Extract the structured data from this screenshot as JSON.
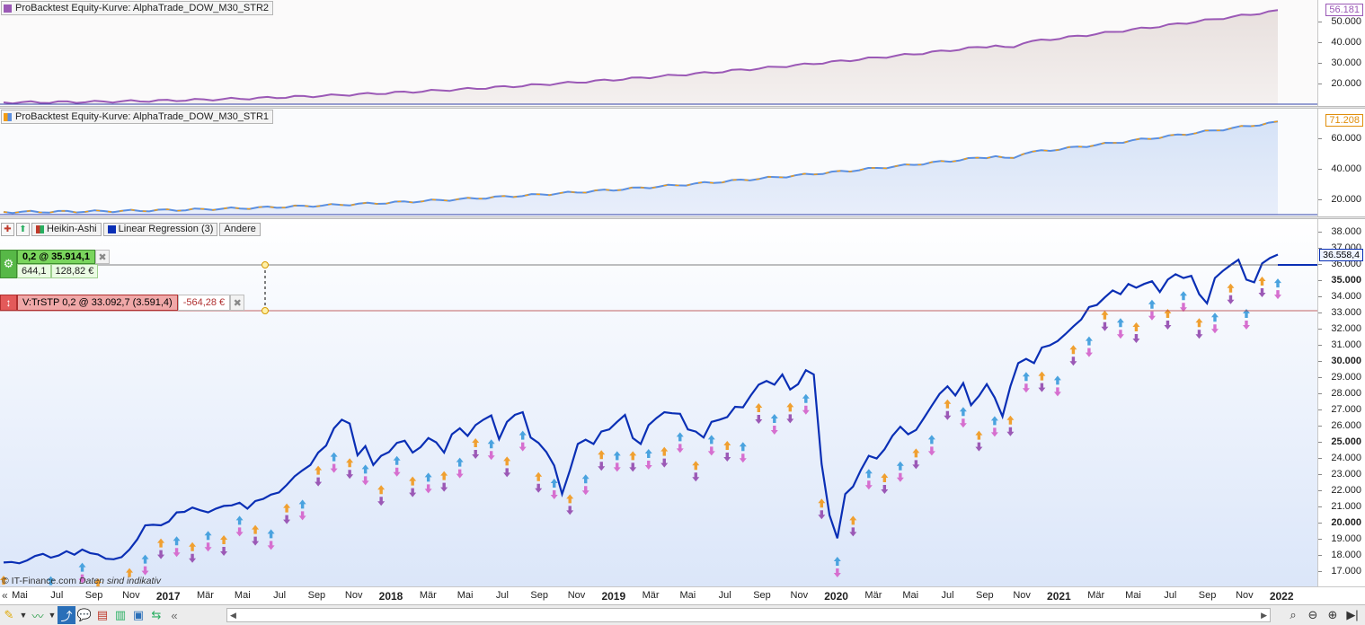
{
  "panels": {
    "equity2": {
      "legend": "ProBacktest Equity-Kurve: AlphaTrade_DOW_M30_STR2",
      "color": "#9b59b6",
      "last_value": "56.181",
      "ticks": [
        "50.000",
        "40.000",
        "30.000",
        "20.000"
      ],
      "icon": "equity-curve-icon"
    },
    "equity1": {
      "legend": "ProBacktest Equity-Kurve: AlphaTrade_DOW_M30_STR1",
      "color": "#f39c12",
      "last_value": "71.208",
      "ticks": [
        "60.000",
        "40.000",
        "20.000"
      ],
      "icon": "equity-curve-icon"
    },
    "price": {
      "toolbar": {
        "heikin": "Heikin-Ashi",
        "linreg": "Linear Regression (3)",
        "other": "Andere"
      },
      "current_price": "36.558,4",
      "ticks": [
        "38.000",
        "37.000",
        "36.000",
        "35.000",
        "34.000",
        "33.000",
        "32.000",
        "31.000",
        "30.000",
        "29.000",
        "28.000",
        "27.000",
        "26.000",
        "25.000",
        "24.000",
        "23.000",
        "22.000",
        "21.000",
        "20.000",
        "19.000",
        "18.000",
        "17.000"
      ],
      "bold_ticks": [
        "35.000",
        "30.000",
        "25.000",
        "20.000"
      ],
      "position": {
        "label": "0,2 @ 35.914,1",
        "points": "644,1",
        "pnl": "128,82 €"
      },
      "stop": {
        "label": "V:TrSTP  0,2 @ 33.092,7 (3.591,4)",
        "pnl": "-564,28 €"
      },
      "line_color": "#0a2fb5",
      "copyright": "© IT-Finance.com",
      "disclaimer": "Daten sind indikativ"
    }
  },
  "xaxis": [
    {
      "t": "Mai",
      "b": false
    },
    {
      "t": "Jul",
      "b": false
    },
    {
      "t": "Sep",
      "b": false
    },
    {
      "t": "Nov",
      "b": false
    },
    {
      "t": "2017",
      "b": true
    },
    {
      "t": "Mär",
      "b": false
    },
    {
      "t": "Mai",
      "b": false
    },
    {
      "t": "Jul",
      "b": false
    },
    {
      "t": "Sep",
      "b": false
    },
    {
      "t": "Nov",
      "b": false
    },
    {
      "t": "2018",
      "b": true
    },
    {
      "t": "Mär",
      "b": false
    },
    {
      "t": "Mai",
      "b": false
    },
    {
      "t": "Jul",
      "b": false
    },
    {
      "t": "Sep",
      "b": false
    },
    {
      "t": "Nov",
      "b": false
    },
    {
      "t": "2019",
      "b": true
    },
    {
      "t": "Mär",
      "b": false
    },
    {
      "t": "Mai",
      "b": false
    },
    {
      "t": "Jul",
      "b": false
    },
    {
      "t": "Sep",
      "b": false
    },
    {
      "t": "Nov",
      "b": false
    },
    {
      "t": "2020",
      "b": true
    },
    {
      "t": "Mär",
      "b": false
    },
    {
      "t": "Mai",
      "b": false
    },
    {
      "t": "Jul",
      "b": false
    },
    {
      "t": "Sep",
      "b": false
    },
    {
      "t": "Nov",
      "b": false
    },
    {
      "t": "2021",
      "b": true
    },
    {
      "t": "Mär",
      "b": false
    },
    {
      "t": "Mai",
      "b": false
    },
    {
      "t": "Jul",
      "b": false
    },
    {
      "t": "Sep",
      "b": false
    },
    {
      "t": "Nov",
      "b": false
    },
    {
      "t": "2022",
      "b": true
    }
  ],
  "chart_data": {
    "type": "line",
    "title": "",
    "x_range": [
      "2016-05",
      "2022-01"
    ],
    "ylim": [
      16500,
      38500
    ],
    "series": [
      {
        "values": [
          17500,
          17600,
          17450,
          17700,
          17900,
          18100,
          17800,
          18000,
          18200,
          18050,
          18300,
          18150,
          18000,
          17800,
          17700,
          17900,
          18300,
          19000,
          19800,
          19900,
          19800,
          20100,
          20600,
          20700,
          20900,
          20800,
          20600,
          20900,
          21000,
          21100,
          21200,
          20900,
          21300,
          21500,
          21700,
          21900,
          22300,
          22900,
          23200,
          23600,
          24300,
          24800,
          25800,
          26400,
          26100,
          24200,
          24700,
          23600,
          24100,
          24400,
          24900,
          25100,
          24300,
          24700,
          25200,
          25000,
          24300,
          25500,
          25800,
          25400,
          26000,
          26400,
          26600,
          25200,
          26200,
          26700,
          26800,
          25300,
          24900,
          24400,
          23500,
          21800,
          23200,
          24900,
          25100,
          24900,
          25600,
          25800,
          26200,
          26700,
          25200,
          24900,
          26000,
          26500,
          26800,
          26800,
          26700,
          25800,
          25600,
          25300,
          26200,
          26400,
          26500,
          27200,
          27100,
          27900,
          28500,
          28800,
          28500,
          29200,
          28200,
          28600,
          29400,
          29200,
          23600,
          20500,
          19000,
          21800,
          22200,
          23300,
          24100,
          24000,
          24500,
          25400,
          25900,
          25500,
          25700,
          26500,
          27200,
          28000,
          28400,
          27900,
          28600,
          27300,
          27800,
          28600,
          27700,
          26600,
          28400,
          29900,
          30100,
          29900,
          30800,
          31000,
          31200,
          31700,
          32100,
          32600,
          33300,
          33500,
          33900,
          34400,
          34100,
          34800,
          34500,
          34800,
          34900,
          34300,
          35000,
          35400,
          35100,
          35300,
          34100,
          33600,
          35100,
          35600,
          35900,
          36300,
          35000,
          34900,
          36000,
          36400,
          36550
        ]
      }
    ]
  }
}
